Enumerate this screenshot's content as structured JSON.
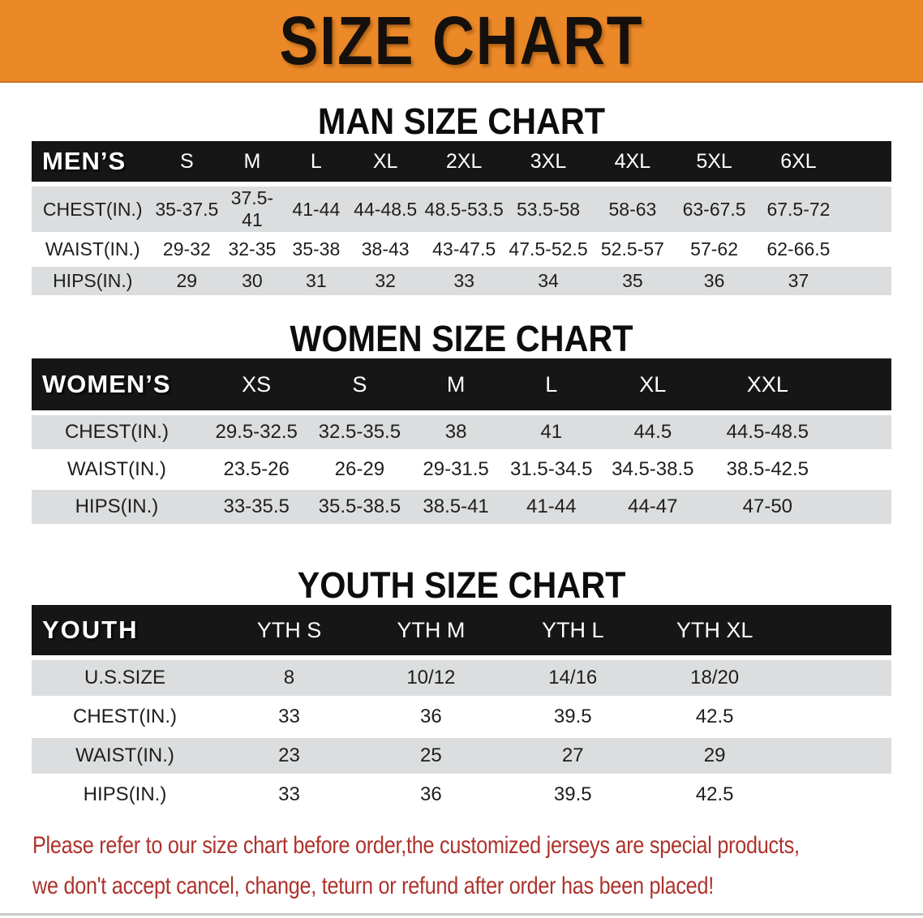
{
  "banner": {
    "title": "SIZE CHART"
  },
  "colors": {
    "banner_bg": "#EB8827",
    "header_bg": "#161616",
    "stripe_bg": "#DBDDDE",
    "notice_red": "#AE322C"
  },
  "sections": {
    "men": {
      "heading": "MAN SIZE CHART"
    },
    "women": {
      "heading": "WOMEN SIZE CHART"
    },
    "youth": {
      "heading": "YOUTH SIZE CHART"
    }
  },
  "tables": {
    "men": {
      "header": [
        "MEN’S",
        "S",
        "M",
        "L",
        "XL",
        "2XL",
        "3XL",
        "4XL",
        "5XL",
        "6XL"
      ],
      "rows": [
        {
          "label": "CHEST(IN.)",
          "values": [
            "35-37.5",
            "37.5-41",
            "41-44",
            "44-48.5",
            "48.5-53.5",
            "53.5-58",
            "58-63",
            "63-67.5",
            "67.5-72"
          ]
        },
        {
          "label": "WAIST(IN.)",
          "values": [
            "29-32",
            "32-35",
            "35-38",
            "38-43",
            "43-47.5",
            "47.5-52.5",
            "52.5-57",
            "57-62",
            "62-66.5"
          ]
        },
        {
          "label": "HIPS(IN.)",
          "values": [
            "29",
            "30",
            "31",
            "32",
            "33",
            "34",
            "35",
            "36",
            "37"
          ]
        }
      ]
    },
    "women": {
      "header": [
        "WOMEN’S",
        "XS",
        "S",
        "M",
        "L",
        "XL",
        "XXL"
      ],
      "rows": [
        {
          "label": "CHEST(IN.)",
          "values": [
            "29.5-32.5",
            "32.5-35.5",
            "38",
            "41",
            "44.5",
            "44.5-48.5"
          ]
        },
        {
          "label": "WAIST(IN.)",
          "values": [
            "23.5-26",
            "26-29",
            "29-31.5",
            "31.5-34.5",
            "34.5-38.5",
            "38.5-42.5"
          ]
        },
        {
          "label": "HIPS(IN.)",
          "values": [
            "33-35.5",
            "35.5-38.5",
            "38.5-41",
            "41-44",
            "44-47",
            "47-50"
          ]
        }
      ]
    },
    "youth": {
      "header": [
        "YOUTH",
        "YTH S",
        "YTH M",
        "YTH L",
        "YTH XL"
      ],
      "rows": [
        {
          "label": "U.S.SIZE",
          "values": [
            "8",
            "10/12",
            "14/16",
            "18/20"
          ]
        },
        {
          "label": "CHEST(IN.)",
          "values": [
            "33",
            "36",
            "39.5",
            "42.5"
          ]
        },
        {
          "label": "WAIST(IN.)",
          "values": [
            "23",
            "25",
            "27",
            "29"
          ]
        },
        {
          "label": "HIPS(IN.)",
          "values": [
            "33",
            "36",
            "39.5",
            "42.5"
          ]
        }
      ]
    }
  },
  "notice": {
    "line1": "Please refer to our size chart before order,the customized jerseys are special products,",
    "line2": "we don't accept cancel, change, teturn or refund after order has been placed!"
  }
}
